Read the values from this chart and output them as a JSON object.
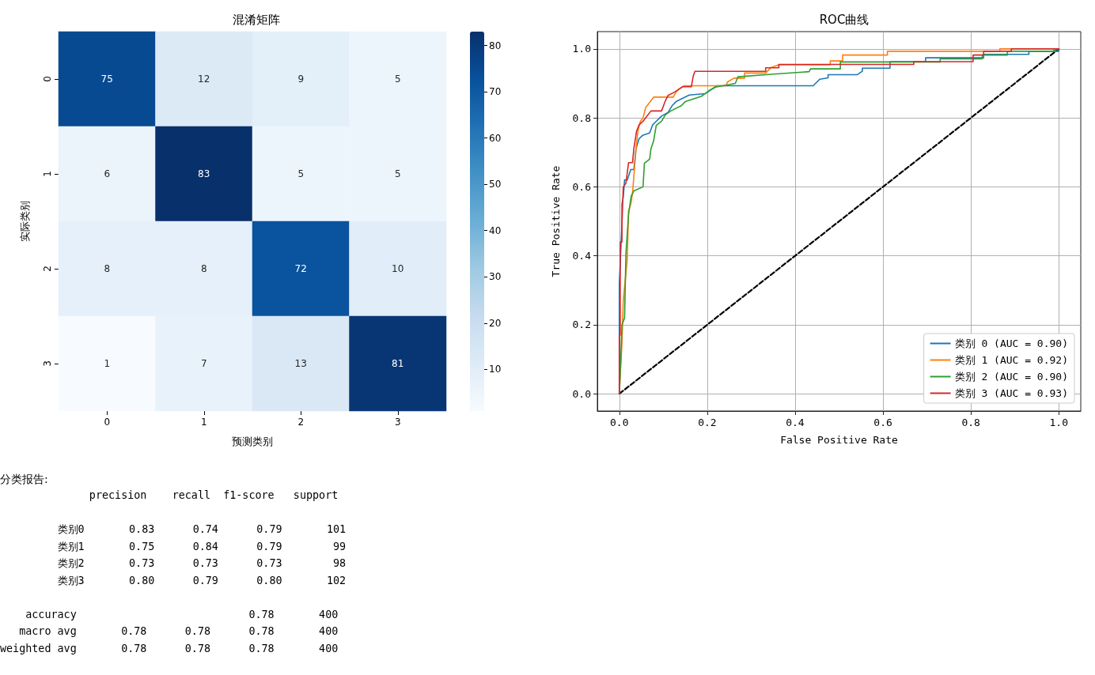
{
  "chart_data": [
    {
      "type": "heatmap",
      "title": "混淆矩阵",
      "xlabel": "预测类别",
      "ylabel": "实际类别",
      "categories": [
        "0",
        "1",
        "2",
        "3"
      ],
      "y_categories": [
        "0",
        "1",
        "2",
        "3"
      ],
      "cells": [
        [
          75,
          12,
          9,
          5
        ],
        [
          6,
          83,
          5,
          5
        ],
        [
          8,
          8,
          72,
          10
        ],
        [
          1,
          7,
          13,
          81
        ]
      ],
      "clim": [
        1,
        83
      ],
      "cticks": [
        10,
        20,
        30,
        40,
        50,
        60,
        70,
        80
      ],
      "data_labels": true
    },
    {
      "type": "line",
      "title": "ROC曲线",
      "xlabel": "False Positive Rate",
      "ylabel": "True Positive Rate",
      "xlim": [
        -0.05,
        1.05
      ],
      "ylim": [
        -0.05,
        1.05
      ],
      "xticks": [
        {
          "value": 0,
          "label": "0.0"
        },
        {
          "value": 0.2,
          "label": "0.2"
        },
        {
          "value": 0.4,
          "label": "0.4"
        },
        {
          "value": 0.6,
          "label": "0.6"
        },
        {
          "value": 0.8,
          "label": "0.8"
        },
        {
          "value": 1,
          "label": "1.0"
        }
      ],
      "yticks": [
        {
          "value": 0,
          "label": "0.0"
        },
        {
          "value": 0.2,
          "label": "0.2"
        },
        {
          "value": 0.4,
          "label": "0.4"
        },
        {
          "value": 0.6,
          "label": "0.6"
        },
        {
          "value": 0.8,
          "label": "0.8"
        },
        {
          "value": 1,
          "label": "1.0"
        }
      ],
      "grid": true,
      "legend": "bottom right",
      "marker": "none",
      "series": [
        {
          "name": "类别 0 (AUC = 0.90)",
          "color": "#1f77b4",
          "x": [
            0,
            0,
            0.006,
            0.006,
            0.009,
            0.012,
            0.018,
            0.026,
            0.033,
            0.038,
            0.045,
            0.054,
            0.069,
            0.076,
            0.084,
            0.096,
            0.111,
            0.12,
            0.129,
            0.159,
            0.195,
            0.222,
            0.441,
            0.456,
            0.475,
            0.475,
            0.541,
            0.553,
            0.553,
            0.616,
            0.616,
            0.697,
            0.697,
            0.829,
            0.829,
            0.932,
            0.932,
            1,
            1
          ],
          "values": [
            0,
            0.32,
            0.49,
            0.55,
            0.57,
            0.62,
            0.62,
            0.65,
            0.65,
            0.71,
            0.74,
            0.75,
            0.756,
            0.78,
            0.79,
            0.805,
            0.816,
            0.835,
            0.847,
            0.866,
            0.87,
            0.893,
            0.893,
            0.912,
            0.916,
            0.925,
            0.925,
            0.935,
            0.944,
            0.944,
            0.963,
            0.963,
            0.974,
            0.974,
            0.984,
            0.984,
            0.993,
            0.993,
            1
          ]
        },
        {
          "name": "类别 1 (AUC = 0.92)",
          "color": "#ff7f0e",
          "x": [
            0,
            0.002,
            0.006,
            0.009,
            0.018,
            0.021,
            0.026,
            0.03,
            0.033,
            0.038,
            0.042,
            0.048,
            0.054,
            0.06,
            0.078,
            0.123,
            0.129,
            0.135,
            0.147,
            0.243,
            0.246,
            0.261,
            0.285,
            0.285,
            0.333,
            0.345,
            0.363,
            0.48,
            0.48,
            0.508,
            0.508,
            0.61,
            0.61,
            0.866,
            0.866,
            1
          ],
          "values": [
            0,
            0.055,
            0.146,
            0.27,
            0.39,
            0.53,
            0.55,
            0.58,
            0.63,
            0.71,
            0.76,
            0.79,
            0.8,
            0.83,
            0.86,
            0.86,
            0.875,
            0.883,
            0.893,
            0.893,
            0.904,
            0.915,
            0.915,
            0.93,
            0.93,
            0.946,
            0.954,
            0.954,
            0.965,
            0.965,
            0.982,
            0.982,
            0.993,
            0.993,
            1,
            1
          ]
        },
        {
          "name": "类别 2 (AUC = 0.90)",
          "color": "#2ca02c",
          "x": [
            0,
            0.003,
            0.006,
            0.012,
            0.015,
            0.021,
            0.027,
            0.033,
            0.054,
            0.057,
            0.069,
            0.072,
            0.078,
            0.084,
            0.096,
            0.105,
            0.117,
            0.141,
            0.15,
            0.186,
            0.207,
            0.219,
            0.264,
            0.27,
            0.351,
            0.432,
            0.435,
            0.503,
            0.503,
            0.73,
            0.73,
            0.826,
            0.826,
            0.883,
            0.883,
            0.985,
            1
          ],
          "values": [
            0,
            0.085,
            0.2,
            0.22,
            0.405,
            0.52,
            0.573,
            0.588,
            0.6,
            0.668,
            0.68,
            0.71,
            0.733,
            0.778,
            0.79,
            0.809,
            0.82,
            0.835,
            0.847,
            0.862,
            0.881,
            0.889,
            0.9,
            0.919,
            0.927,
            0.934,
            0.942,
            0.942,
            0.962,
            0.962,
            0.971,
            0.971,
            0.982,
            0.982,
            0.993,
            0.993,
            1
          ]
        },
        {
          "name": "类别 3 (AUC = 0.93)",
          "color": "#d62728",
          "x": [
            0,
            0,
            0.002,
            0.002,
            0.006,
            0.006,
            0.009,
            0.015,
            0.021,
            0.03,
            0.033,
            0.039,
            0.045,
            0.054,
            0.06,
            0.072,
            0.096,
            0.105,
            0.111,
            0.126,
            0.144,
            0.164,
            0.168,
            0.172,
            0.333,
            0.333,
            0.363,
            0.363,
            0.67,
            0.67,
            0.805,
            0.805,
            0.829,
            0.829,
            0.892,
            0.892,
            1
          ],
          "values": [
            0,
            0.17,
            0.17,
            0.44,
            0.44,
            0.49,
            0.6,
            0.61,
            0.67,
            0.67,
            0.71,
            0.76,
            0.78,
            0.79,
            0.8,
            0.82,
            0.82,
            0.85,
            0.865,
            0.875,
            0.89,
            0.89,
            0.92,
            0.935,
            0.935,
            0.945,
            0.945,
            0.955,
            0.955,
            0.963,
            0.963,
            0.982,
            0.982,
            0.993,
            0.993,
            1,
            1
          ]
        },
        {
          "color": "#000000",
          "line_style": "dashed",
          "x": [
            0,
            1
          ],
          "values": [
            0,
            1
          ]
        }
      ]
    },
    {
      "type": "other",
      "title": "分类报告:",
      "annotations": [
        "              precision    recall  f1-score   support\n\n         类别0       0.83      0.74      0.79       101\n         类别1       0.75      0.84      0.79        99\n         类别2       0.73      0.73      0.73        98\n         类别3       0.80      0.79      0.80       102\n\n    accuracy                           0.78       400\n   macro avg       0.78      0.78      0.78       400\nweighted avg       0.78      0.78      0.78       400"
      ]
    }
  ]
}
